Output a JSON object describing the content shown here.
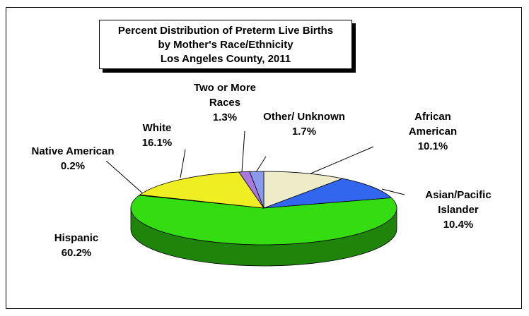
{
  "chart_data": {
    "type": "pie",
    "title": [
      "Percent Distribution of Preterm Live Births",
      "by Mother's Race/Ethnicity",
      "Los Angeles County, 2011"
    ],
    "categories": [
      "African American",
      "Asian/Pacific Islander",
      "Hispanic",
      "Native American",
      "White",
      "Two or More Races",
      "Other/ Unknown"
    ],
    "values": [
      10.1,
      10.4,
      60.2,
      0.2,
      16.1,
      1.3,
      1.7
    ],
    "value_labels": [
      "10.1%",
      "10.4%",
      "60.2%",
      "0.2%",
      "16.1%",
      "1.3%",
      "1.7%"
    ],
    "colors": [
      "#eeebc9",
      "#3366ee",
      "#33dd11",
      "#cc6633",
      "#eeee22",
      "#aa77dd",
      "#8899ee"
    ]
  }
}
